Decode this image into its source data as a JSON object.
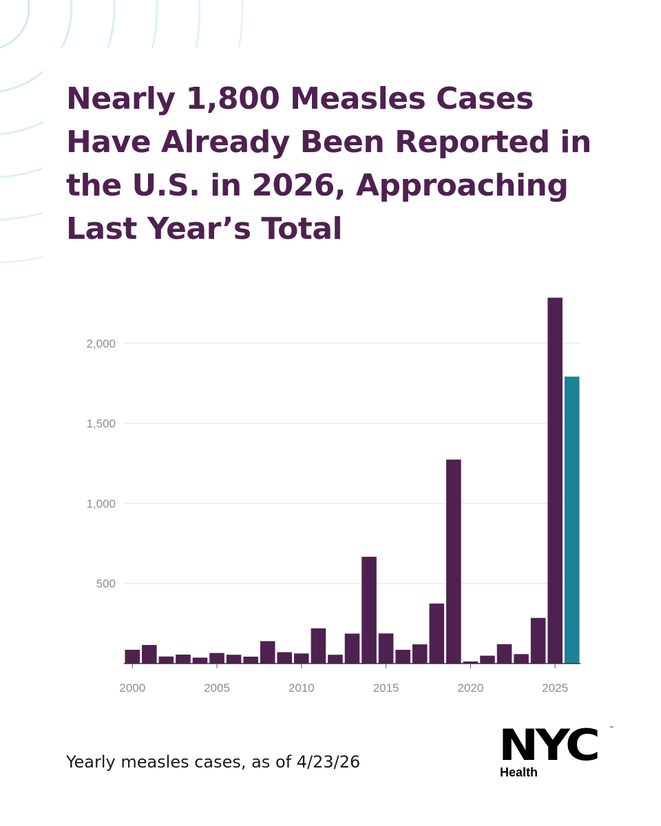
{
  "headline": "Nearly 1,800 Measles Cases Have Already Been Reported in the U.S. in 2026, Approaching Last Year’s Total",
  "caption": "Yearly measles cases, as of 4/23/26",
  "logo": {
    "mark": "NYC",
    "sub": "Health",
    "tm": "™"
  },
  "colors": {
    "primary": "#4e2150",
    "highlight": "#1a8396",
    "grid": "#e2e2e2",
    "tick_text": "#8c8c8c",
    "deco": "#cde9f0"
  },
  "chart_data": {
    "type": "bar",
    "title": "",
    "xlabel": "",
    "ylabel": "",
    "ylim": [
      0,
      2300
    ],
    "y_ticks": [
      500,
      1000,
      1500,
      2000
    ],
    "y_tick_labels": [
      "500",
      "1,000",
      "1,500",
      "2,000"
    ],
    "x_ticks": [
      2000,
      2005,
      2010,
      2015,
      2020,
      2025
    ],
    "x_tick_labels": [
      "2000",
      "2005",
      "2010",
      "2015",
      "2020",
      "2025"
    ],
    "grid": true,
    "legend": "none",
    "highlight_category": "2026",
    "categories": [
      "2000",
      "2001",
      "2002",
      "2003",
      "2004",
      "2005",
      "2006",
      "2007",
      "2008",
      "2009",
      "2010",
      "2011",
      "2012",
      "2013",
      "2014",
      "2015",
      "2016",
      "2017",
      "2018",
      "2019",
      "2020",
      "2021",
      "2022",
      "2023",
      "2024",
      "2025",
      "2026"
    ],
    "values": [
      86,
      116,
      44,
      56,
      37,
      66,
      55,
      43,
      140,
      71,
      63,
      220,
      55,
      187,
      667,
      188,
      86,
      120,
      375,
      1274,
      13,
      49,
      121,
      59,
      285,
      2285,
      1792
    ]
  }
}
